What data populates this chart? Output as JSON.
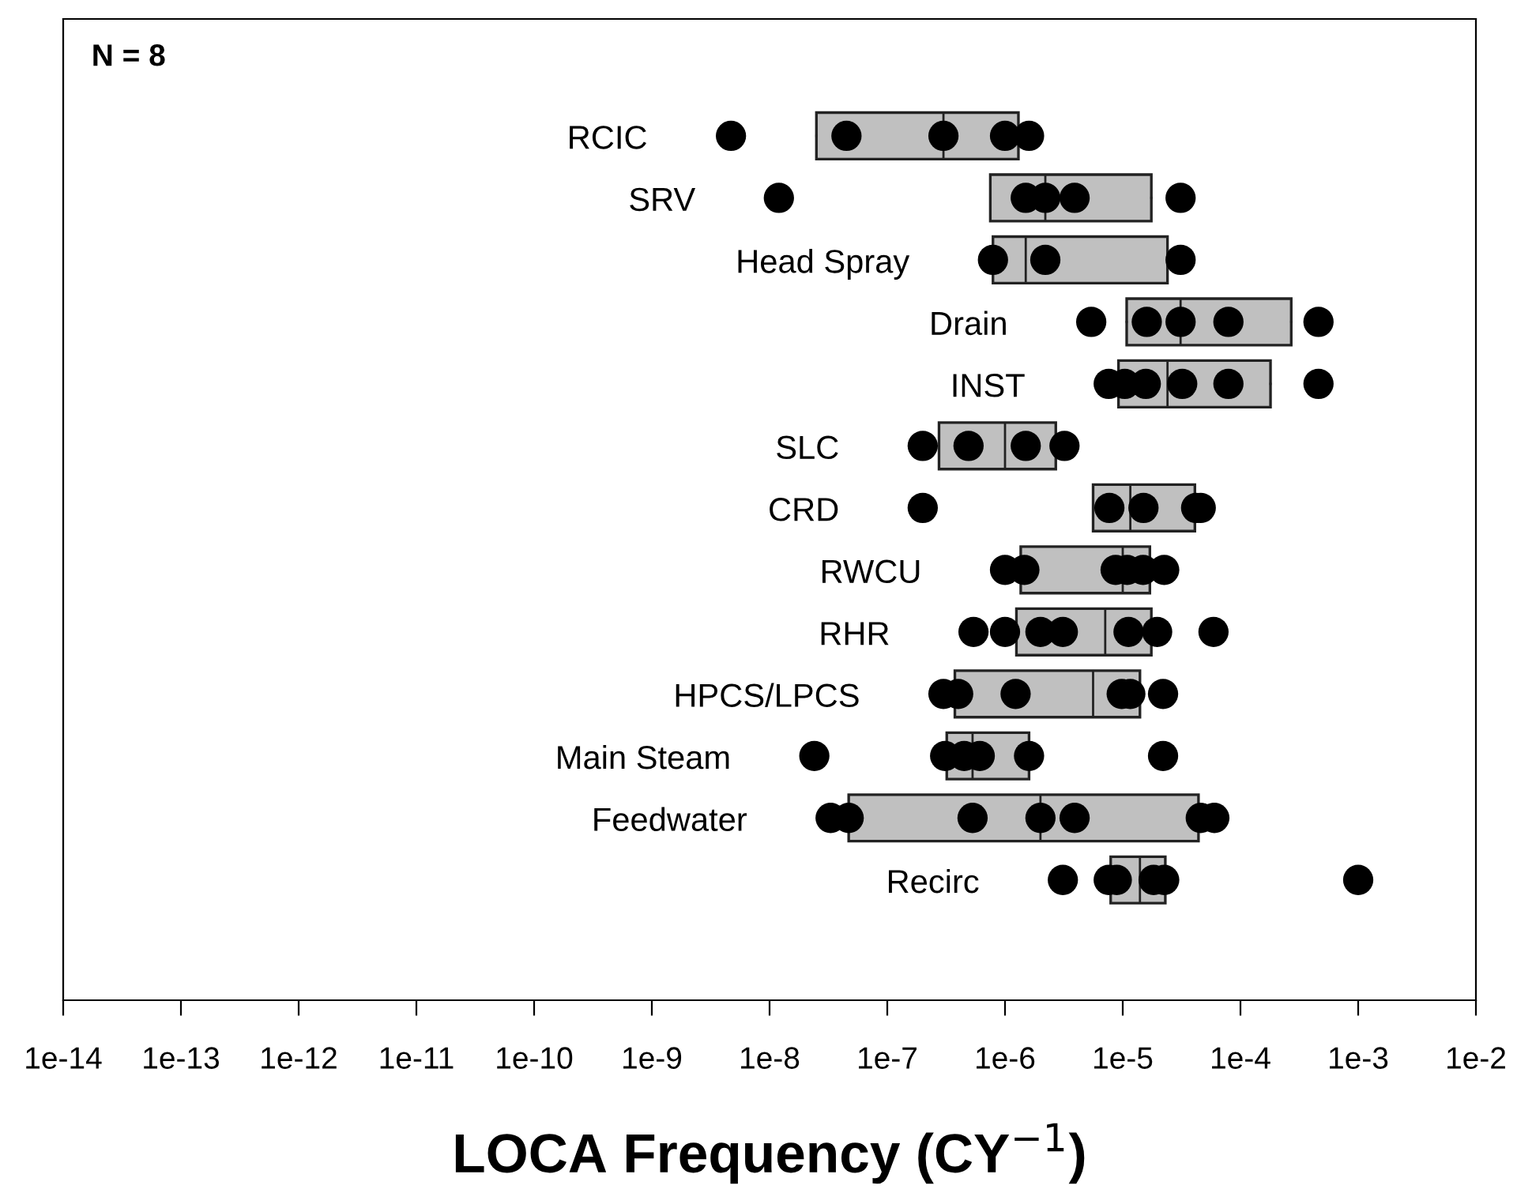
{
  "chart_data": {
    "type": "box",
    "orientation": "horizontal",
    "log": "x",
    "xlabel": "LOCA Frequency (CY$^{−1}$)",
    "annotations": [
      "N = 8"
    ],
    "categories": [
      "RCIC",
      "SRV",
      "Head Spray",
      "Drain",
      "INST",
      "SLC",
      "CRD",
      "RWCU",
      "RHR",
      "HPCS/LPCS",
      "Main Steam",
      "Feedwater",
      "Recirc"
    ],
    "color": "#c0c0c0",
    "boxes": [
      {
        "low": 2.5e-08,
        "q1": 2.5e-08,
        "median": 3e-07,
        "q3": 1.3e-06,
        "high": 1.3e-06
      },
      {
        "low": 7.5e-07,
        "q1": 7.5e-07,
        "median": 2.2e-06,
        "q3": 1.75e-05,
        "high": 1.75e-05
      },
      {
        "low": 7.9e-07,
        "q1": 7.9e-07,
        "median": 1.5e-06,
        "q3": 2.4e-05,
        "high": 2.4e-05
      },
      {
        "low": 1.08e-05,
        "q1": 1.08e-05,
        "median": 3.1e-05,
        "q3": 0.00027,
        "high": 0.00027
      },
      {
        "low": 9.2e-06,
        "q1": 9.2e-06,
        "median": 2.4e-05,
        "q3": 0.00018,
        "high": 0.00018
      },
      {
        "low": 2.75e-07,
        "q1": 2.75e-07,
        "median": 1e-06,
        "q3": 2.7e-06,
        "high": 2.7e-06
      },
      {
        "low": 5.6e-06,
        "q1": 5.6e-06,
        "median": 1.16e-05,
        "q3": 4.1e-05,
        "high": 4.1e-05
      },
      {
        "low": 1.36e-06,
        "q1": 1.36e-06,
        "median": 1e-05,
        "q3": 1.7e-05,
        "high": 1.7e-05
      },
      {
        "low": 1.25e-06,
        "q1": 1.25e-06,
        "median": 7.1e-06,
        "q3": 1.75e-05,
        "high": 1.75e-05
      },
      {
        "low": 3.75e-07,
        "q1": 3.75e-07,
        "median": 5.6e-06,
        "q3": 1.4e-05,
        "high": 1.4e-05
      },
      {
        "low": 3.2e-07,
        "q1": 3.2e-07,
        "median": 5.3e-07,
        "q3": 1.6e-06,
        "high": 1.6e-06
      },
      {
        "low": 4.7e-08,
        "q1": 4.7e-08,
        "median": 2e-06,
        "q3": 4.4e-05,
        "high": 4.4e-05
      },
      {
        "low": 7.9e-06,
        "q1": 7.9e-06,
        "median": 1.4e-05,
        "q3": 2.3e-05,
        "high": 2.3e-05
      }
    ],
    "series": [
      {
        "type": "scatter",
        "color": "#000000",
        "marker": "circle",
        "x": [
          "RCIC",
          "RCIC",
          "RCIC",
          "RCIC",
          "RCIC",
          "SRV",
          "SRV",
          "SRV",
          "SRV",
          "SRV",
          "Head Spray",
          "Head Spray",
          "Head Spray",
          "Drain",
          "Drain",
          "Drain",
          "Drain",
          "Drain",
          "INST",
          "INST",
          "INST",
          "INST",
          "INST",
          "INST",
          "SLC",
          "SLC",
          "SLC",
          "SLC",
          "CRD",
          "CRD",
          "CRD",
          "CRD",
          "CRD",
          "RWCU",
          "RWCU",
          "RWCU",
          "RWCU",
          "RWCU",
          "RWCU",
          "RHR",
          "RHR",
          "RHR",
          "RHR",
          "RHR",
          "RHR",
          "RHR",
          "HPCS/LPCS",
          "HPCS/LPCS",
          "HPCS/LPCS",
          "HPCS/LPCS",
          "HPCS/LPCS",
          "HPCS/LPCS",
          "Main Steam",
          "Main Steam",
          "Main Steam",
          "Main Steam",
          "Main Steam",
          "Main Steam",
          "Feedwater",
          "Feedwater",
          "Feedwater",
          "Feedwater",
          "Feedwater",
          "Feedwater",
          "Feedwater",
          "Recirc",
          "Recirc",
          "Recirc",
          "Recirc",
          "Recirc",
          "Recirc"
        ],
        "values": [
          4.7e-09,
          4.5e-08,
          3e-07,
          1e-06,
          1.6e-06,
          1.2e-08,
          1.5e-06,
          2.2e-06,
          3.9e-06,
          3.1e-05,
          7.9e-07,
          2.2e-06,
          3.1e-05,
          5.4e-06,
          1.6e-05,
          3.1e-05,
          7.9e-05,
          0.00046,
          7.6e-06,
          1.04e-05,
          1.57e-05,
          3.2e-05,
          7.9e-05,
          0.00046,
          2e-07,
          4.9e-07,
          1.5e-06,
          3.2e-06,
          2e-07,
          7.7e-06,
          1.5e-05,
          4.2e-05,
          4.6e-05,
          1e-06,
          1.46e-06,
          8.7e-06,
          1.09e-05,
          1.49e-05,
          2.25e-05,
          5.4e-07,
          1e-06,
          2e-06,
          3.1e-06,
          1.12e-05,
          1.96e-05,
          5.9e-05,
          3e-07,
          4e-07,
          1.23e-06,
          9.8e-06,
          1.16e-05,
          2.2e-05,
          2.4e-08,
          3.1e-07,
          4.5e-07,
          6.1e-07,
          1.6e-06,
          2.2e-05,
          3.3e-08,
          4.7e-08,
          5.3e-07,
          2e-06,
          3.9e-06,
          4.6e-05,
          6e-05,
          3.1e-06,
          7.6e-06,
          8.9e-06,
          1.83e-05,
          2.25e-05,
          0.001
        ]
      }
    ],
    "xlim": [
      1e-14,
      0.01
    ],
    "xticks": [
      {
        "value": 1e-14,
        "label": "1e-14"
      },
      {
        "value": 1e-13,
        "label": "1e-13"
      },
      {
        "value": 1e-12,
        "label": "1e-12"
      },
      {
        "value": 1e-11,
        "label": "1e-11"
      },
      {
        "value": 1e-10,
        "label": "1e-10"
      },
      {
        "value": 1e-09,
        "label": "1e-9"
      },
      {
        "value": 1e-08,
        "label": "1e-8"
      },
      {
        "value": 1e-07,
        "label": "1e-7"
      },
      {
        "value": 1e-06,
        "label": "1e-6"
      },
      {
        "value": 1e-05,
        "label": "1e-5"
      },
      {
        "value": 0.0001,
        "label": "1e-4"
      },
      {
        "value": 0.001,
        "label": "1e-3"
      },
      {
        "value": 0.01,
        "label": "1e-2"
      }
    ],
    "tick_labels": "x",
    "grid": false,
    "legend": false
  }
}
